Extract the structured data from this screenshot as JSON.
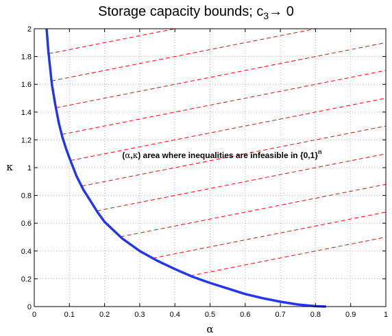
{
  "chart_data": {
    "type": "line",
    "title": {
      "main": "Storage capacity bounds; c",
      "subscript": "3",
      "arrow": "→",
      "tail": " 0"
    },
    "xlabel": "α",
    "ylabel": "κ",
    "xlim": [
      0,
      1
    ],
    "ylim": [
      0,
      2
    ],
    "xticks": [
      "0",
      "0.1",
      "0.2",
      "0.3",
      "0.4",
      "0.5",
      "0.6",
      "0.7",
      "0.8",
      "0.9",
      "1"
    ],
    "yticks": [
      "0",
      "0.2",
      "0.4",
      "0.6",
      "0.8",
      "1",
      "1.2",
      "1.4",
      "1.6",
      "1.8",
      "2"
    ],
    "grid": true,
    "annotation": {
      "paren_open": "(",
      "alpha": "α",
      "comma": ",",
      "kappa": "κ",
      "text": ") area where inequalities are infeasible in {0,1}",
      "superscript": "n",
      "anchor": [
        0.25,
        1.07
      ]
    },
    "series": [
      {
        "color": "#2236f0",
        "style": "solid",
        "x": [
          0.035,
          0.04,
          0.05,
          0.06,
          0.07,
          0.08,
          0.09,
          0.1,
          0.12,
          0.14,
          0.16,
          0.18,
          0.2,
          0.25,
          0.3,
          0.35,
          0.4,
          0.45,
          0.5,
          0.55,
          0.6,
          0.65,
          0.7,
          0.75,
          0.8,
          0.83
        ],
        "y": [
          2.0,
          1.84,
          1.6,
          1.45,
          1.32,
          1.22,
          1.14,
          1.07,
          0.94,
          0.84,
          0.76,
          0.68,
          0.61,
          0.49,
          0.4,
          0.33,
          0.27,
          0.215,
          0.17,
          0.13,
          0.09,
          0.06,
          0.035,
          0.015,
          0.003,
          0.0
        ]
      }
    ],
    "hatch": {
      "color": "#ff0000",
      "style": "dashed",
      "slope": 0.5,
      "intercepts": [
        0.0,
        0.18,
        0.38,
        0.6,
        0.8,
        1.0,
        1.2,
        1.4,
        1.6,
        1.8
      ]
    }
  }
}
